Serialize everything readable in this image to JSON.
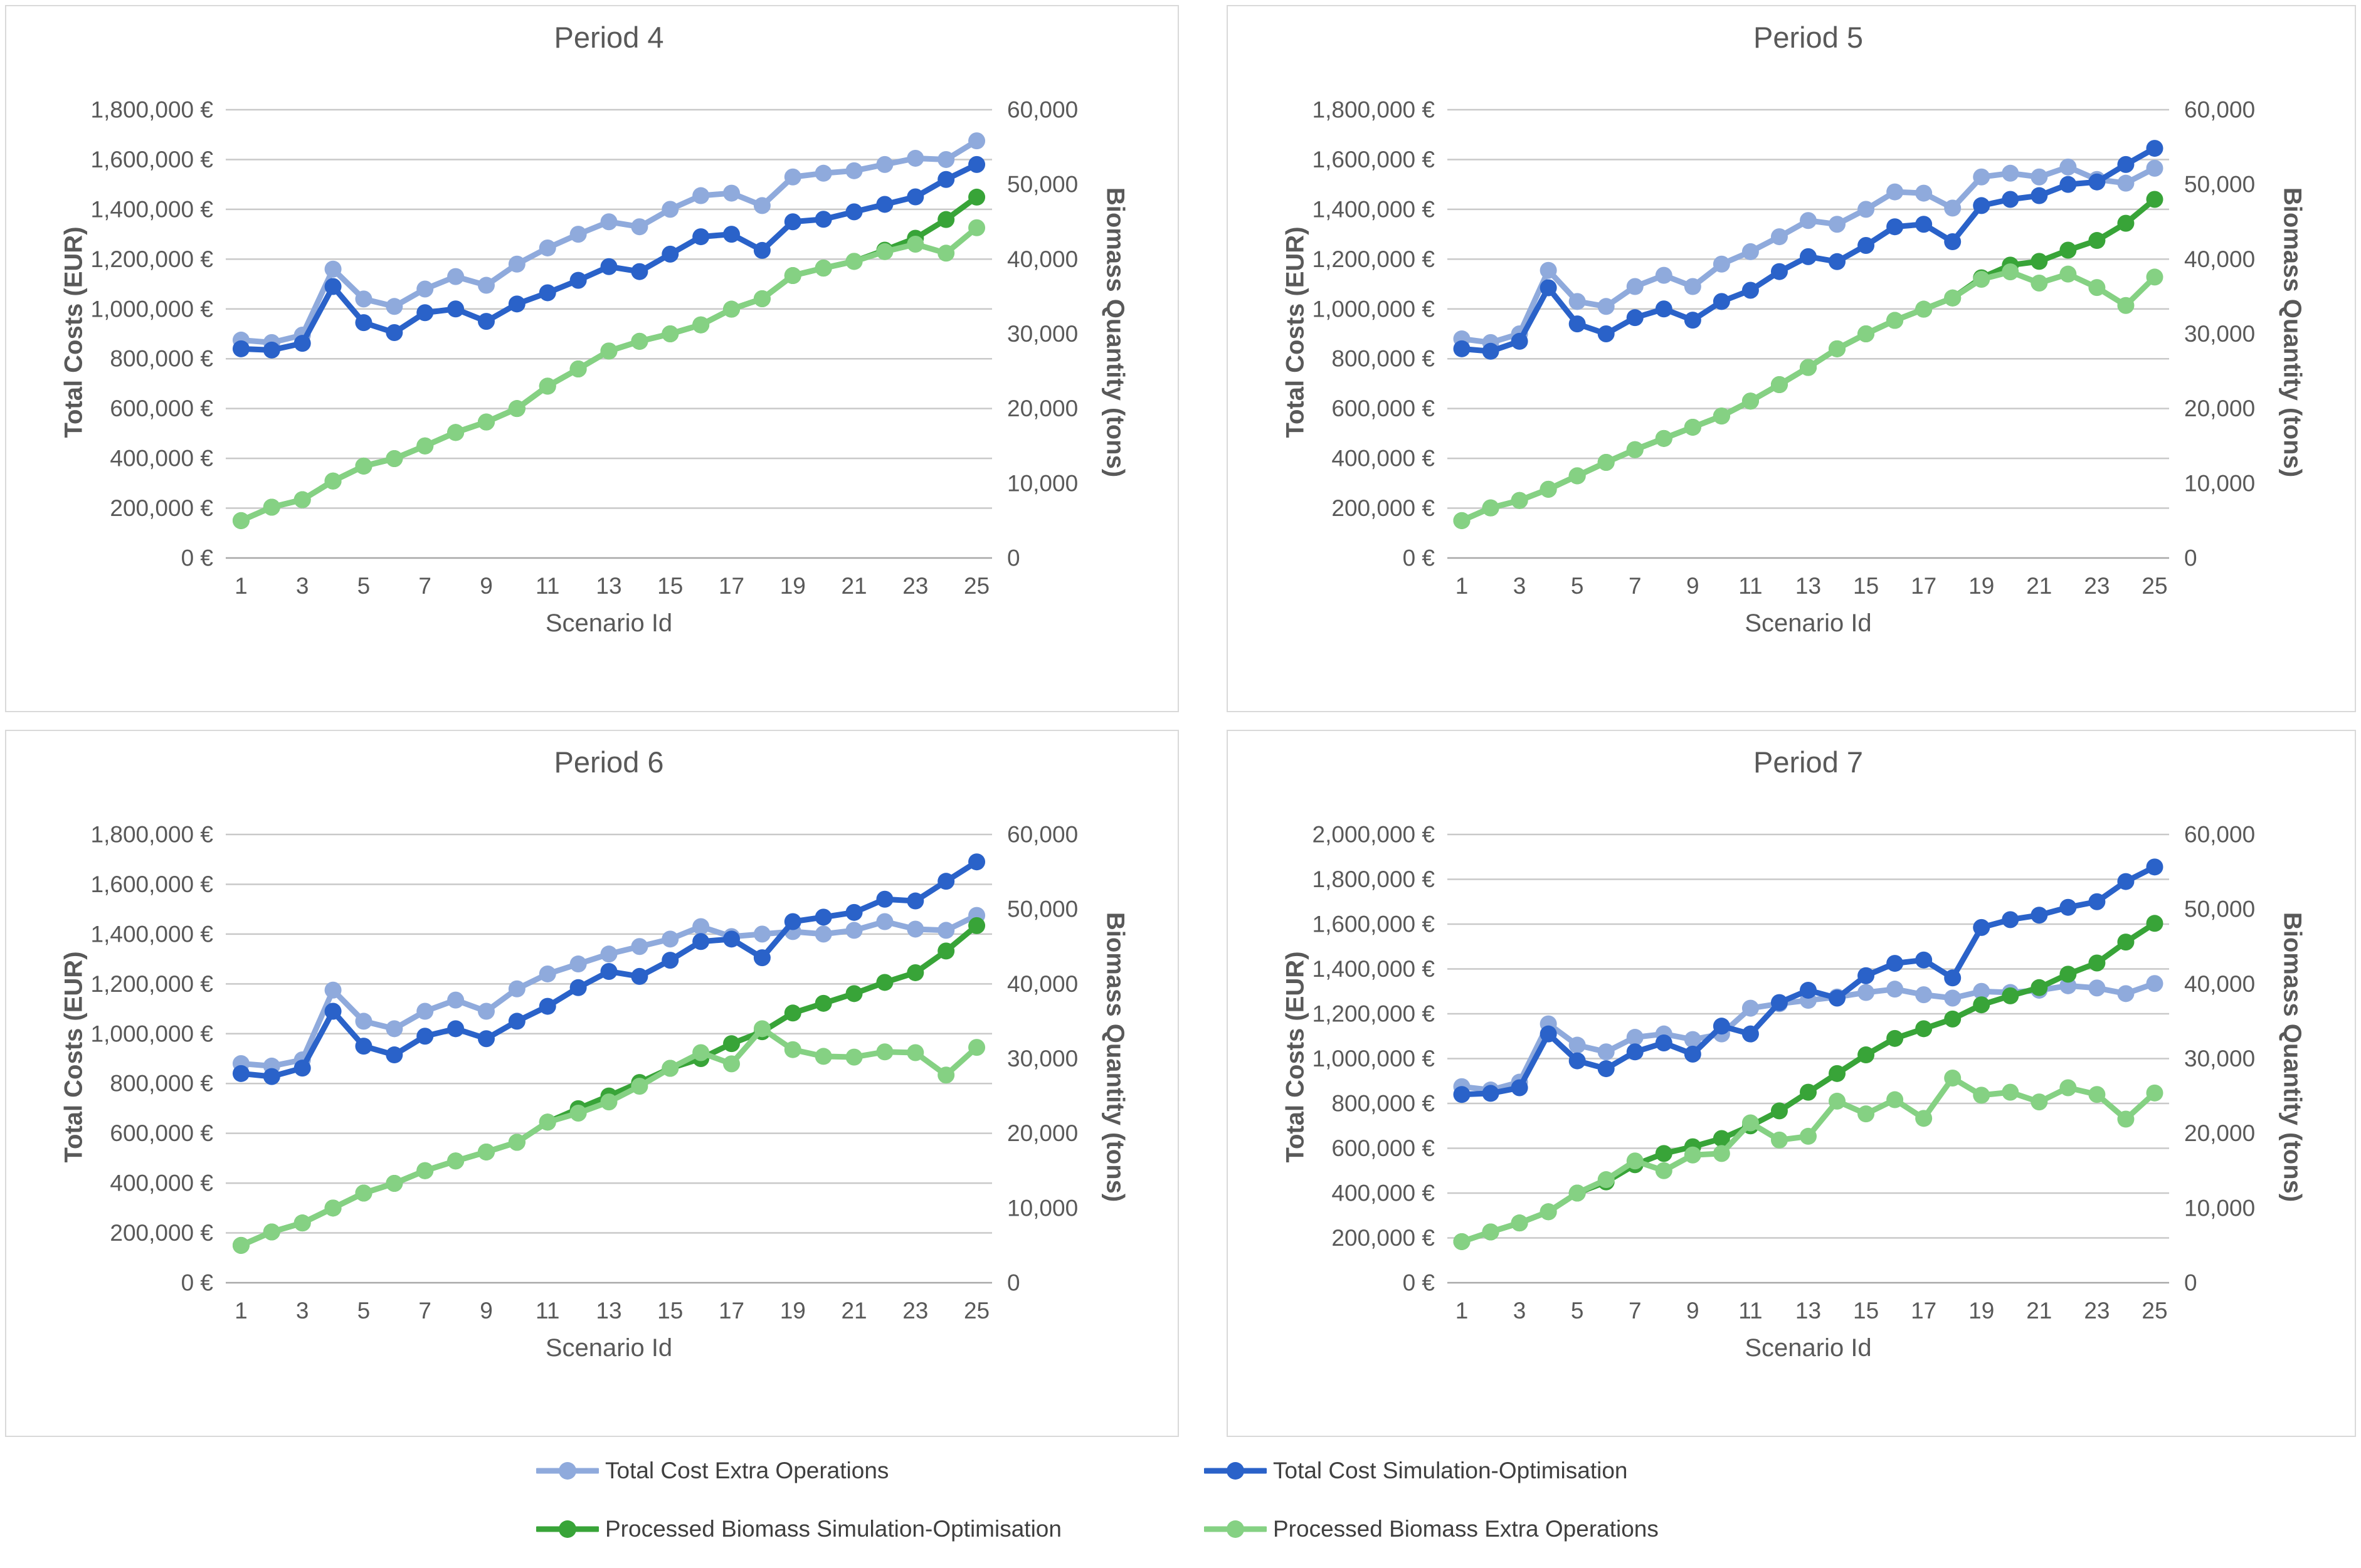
{
  "legend": {
    "items": [
      {
        "label": "Total Cost Extra Operations",
        "color": "#8FAADC"
      },
      {
        "label": "Total Cost Simulation-Optimisation",
        "color": "#2A62C9"
      },
      {
        "label": "Processed Biomass Simulation-Optimisation",
        "color": "#38A438"
      },
      {
        "label": "Processed Biomass Extra Operations",
        "color": "#85D183"
      }
    ]
  },
  "chart_data": [
    {
      "title": "Period 4",
      "type": "line",
      "xlabel": "Scenario Id",
      "ylabel_left": "Total Costs (EUR)",
      "ylabel_right": "Biomass Quantity (tons)",
      "x": [
        1,
        2,
        3,
        4,
        5,
        6,
        7,
        8,
        9,
        10,
        11,
        12,
        13,
        14,
        15,
        16,
        17,
        18,
        19,
        20,
        21,
        22,
        23,
        24,
        25
      ],
      "x_tick_labels": [
        "1",
        "3",
        "5",
        "7",
        "9",
        "11",
        "13",
        "15",
        "17",
        "19",
        "21",
        "23",
        "25"
      ],
      "left_axis": {
        "min": 0,
        "max": 1800000,
        "tick_labels": [
          "1,800,000 €",
          "1,600,000 €",
          "1,400,000 €",
          "1,200,000 €",
          "1,000,000 €",
          "800,000 €",
          "600,000 €",
          "400,000 €",
          "200,000 €",
          "0 €"
        ]
      },
      "right_axis": {
        "min": 0,
        "max": 60000,
        "tick_labels": [
          "60,000",
          "50,000",
          "40,000",
          "30,000",
          "20,000",
          "10,000",
          "0"
        ]
      },
      "grid": true,
      "legend_position": "bottom",
      "series": [
        {
          "name": "Total Cost Extra Operations",
          "axis": "left",
          "color": "#8FAADC",
          "values": [
            875000,
            865000,
            895000,
            1160000,
            1040000,
            1010000,
            1080000,
            1130000,
            1095000,
            1180000,
            1245000,
            1300000,
            1350000,
            1330000,
            1400000,
            1455000,
            1465000,
            1415000,
            1530000,
            1545000,
            1555000,
            1580000,
            1605000,
            1600000,
            1675000
          ]
        },
        {
          "name": "Total Cost Simulation-Optimisation",
          "axis": "left",
          "color": "#2A62C9",
          "values": [
            840000,
            835000,
            862000,
            1090000,
            945000,
            905000,
            985000,
            1000000,
            950000,
            1020000,
            1065000,
            1115000,
            1170000,
            1150000,
            1220000,
            1290000,
            1300000,
            1235000,
            1350000,
            1360000,
            1390000,
            1420000,
            1450000,
            1520000,
            1580000
          ]
        },
        {
          "name": "Processed Biomass Simulation-Optimisation",
          "axis": "right",
          "color": "#38A438",
          "values": [
            5000,
            6800,
            7800,
            10300,
            12300,
            13300,
            15000,
            16800,
            18200,
            20000,
            23000,
            25300,
            27700,
            29000,
            30000,
            31200,
            33300,
            34700,
            37800,
            38800,
            39700,
            41200,
            42800,
            45300,
            48300
          ]
        },
        {
          "name": "Processed Biomass Extra Operations",
          "axis": "right",
          "color": "#85D183",
          "values": [
            5000,
            6800,
            7800,
            10300,
            12300,
            13300,
            15000,
            16800,
            18200,
            20000,
            23000,
            25300,
            27700,
            29000,
            30000,
            31200,
            33300,
            34700,
            37800,
            38800,
            39700,
            41000,
            42000,
            40800,
            44200
          ]
        }
      ]
    },
    {
      "title": "Period 5",
      "type": "line",
      "xlabel": "Scenario Id",
      "ylabel_left": "Total Costs (EUR)",
      "ylabel_right": "Biomass Quantity (tons)",
      "x": [
        1,
        2,
        3,
        4,
        5,
        6,
        7,
        8,
        9,
        10,
        11,
        12,
        13,
        14,
        15,
        16,
        17,
        18,
        19,
        20,
        21,
        22,
        23,
        24,
        25
      ],
      "x_tick_labels": [
        "1",
        "3",
        "5",
        "7",
        "9",
        "11",
        "13",
        "15",
        "17",
        "19",
        "21",
        "23",
        "25"
      ],
      "left_axis": {
        "min": 0,
        "max": 1800000,
        "tick_labels": [
          "1,800,000 €",
          "1,600,000 €",
          "1,400,000 €",
          "1,200,000 €",
          "1,000,000 €",
          "800,000 €",
          "600,000 €",
          "400,000 €",
          "200,000 €",
          "0 €"
        ]
      },
      "right_axis": {
        "min": 0,
        "max": 60000,
        "tick_labels": [
          "60,000",
          "50,000",
          "40,000",
          "30,000",
          "20,000",
          "10,000",
          "0"
        ]
      },
      "grid": true,
      "legend_position": "bottom",
      "series": [
        {
          "name": "Total Cost Extra Operations",
          "axis": "left",
          "color": "#8FAADC",
          "values": [
            880000,
            865000,
            900000,
            1155000,
            1030000,
            1010000,
            1090000,
            1135000,
            1090000,
            1180000,
            1230000,
            1290000,
            1355000,
            1340000,
            1400000,
            1470000,
            1465000,
            1405000,
            1530000,
            1545000,
            1530000,
            1570000,
            1520000,
            1505000,
            1565000
          ]
        },
        {
          "name": "Total Cost Simulation-Optimisation",
          "axis": "left",
          "color": "#2A62C9",
          "values": [
            840000,
            830000,
            870000,
            1085000,
            940000,
            900000,
            965000,
            1000000,
            955000,
            1030000,
            1075000,
            1150000,
            1210000,
            1190000,
            1255000,
            1330000,
            1340000,
            1270000,
            1415000,
            1440000,
            1455000,
            1500000,
            1510000,
            1580000,
            1645000
          ]
        },
        {
          "name": "Processed Biomass Simulation-Optimisation",
          "axis": "right",
          "color": "#38A438",
          "values": [
            5000,
            6700,
            7700,
            9200,
            11000,
            12800,
            14500,
            16000,
            17500,
            19000,
            21000,
            23200,
            25500,
            28000,
            30000,
            31800,
            33300,
            34800,
            37500,
            39200,
            39700,
            41200,
            42500,
            44800,
            48000
          ]
        },
        {
          "name": "Processed Biomass Extra Operations",
          "axis": "right",
          "color": "#85D183",
          "values": [
            5000,
            6700,
            7700,
            9200,
            11000,
            12800,
            14500,
            16000,
            17500,
            19000,
            21000,
            23200,
            25500,
            28000,
            30000,
            31800,
            33300,
            34800,
            37300,
            38300,
            36800,
            38000,
            36200,
            33800,
            37600
          ]
        }
      ]
    },
    {
      "title": "Period 6",
      "type": "line",
      "xlabel": "Scenario Id",
      "ylabel_left": "Total Costs (EUR)",
      "ylabel_right": "Biomass Quantity (tons)",
      "x": [
        1,
        2,
        3,
        4,
        5,
        6,
        7,
        8,
        9,
        10,
        11,
        12,
        13,
        14,
        15,
        16,
        17,
        18,
        19,
        20,
        21,
        22,
        23,
        24,
        25
      ],
      "x_tick_labels": [
        "1",
        "3",
        "5",
        "7",
        "9",
        "11",
        "13",
        "15",
        "17",
        "19",
        "21",
        "23",
        "25"
      ],
      "left_axis": {
        "min": 0,
        "max": 1800000,
        "tick_labels": [
          "1,800,000 €",
          "1,600,000 €",
          "1,400,000 €",
          "1,200,000 €",
          "1,000,000 €",
          "800,000 €",
          "600,000 €",
          "400,000 €",
          "200,000 €",
          "0 €"
        ]
      },
      "right_axis": {
        "min": 0,
        "max": 60000,
        "tick_labels": [
          "60,000",
          "50,000",
          "40,000",
          "30,000",
          "20,000",
          "10,000",
          "0"
        ]
      },
      "grid": true,
      "legend_position": "bottom",
      "series": [
        {
          "name": "Total Cost Extra Operations",
          "axis": "left",
          "color": "#8FAADC",
          "values": [
            880000,
            870000,
            895000,
            1175000,
            1050000,
            1020000,
            1090000,
            1135000,
            1090000,
            1180000,
            1240000,
            1280000,
            1320000,
            1350000,
            1380000,
            1430000,
            1390000,
            1400000,
            1410000,
            1400000,
            1415000,
            1450000,
            1420000,
            1415000,
            1475000
          ]
        },
        {
          "name": "Total Cost Simulation-Optimisation",
          "axis": "left",
          "color": "#2A62C9",
          "values": [
            840000,
            828000,
            862000,
            1090000,
            950000,
            915000,
            990000,
            1020000,
            980000,
            1050000,
            1110000,
            1185000,
            1250000,
            1230000,
            1295000,
            1370000,
            1380000,
            1305000,
            1450000,
            1468000,
            1487000,
            1540000,
            1533000,
            1612000,
            1690000
          ]
        },
        {
          "name": "Processed Biomass Simulation-Optimisation",
          "axis": "right",
          "color": "#38A438",
          "values": [
            5000,
            6800,
            8000,
            10000,
            12000,
            13300,
            15000,
            16300,
            17500,
            18800,
            21500,
            23300,
            25000,
            26800,
            28700,
            30000,
            32000,
            33600,
            36100,
            37400,
            38700,
            40200,
            41500,
            44400,
            47800
          ]
        },
        {
          "name": "Processed Biomass Extra Operations",
          "axis": "right",
          "color": "#85D183",
          "values": [
            5000,
            6800,
            8000,
            10000,
            12000,
            13300,
            15000,
            16300,
            17500,
            18800,
            21500,
            22700,
            24200,
            26300,
            28700,
            30800,
            29300,
            34000,
            31200,
            30300,
            30200,
            30900,
            30800,
            27800,
            31500
          ]
        }
      ]
    },
    {
      "title": "Period 7",
      "type": "line",
      "xlabel": "Scenario Id",
      "ylabel_left": "Total Costs (EUR)",
      "ylabel_right": "Biomass Quantity (tons)",
      "x": [
        1,
        2,
        3,
        4,
        5,
        6,
        7,
        8,
        9,
        10,
        11,
        12,
        13,
        14,
        15,
        16,
        17,
        18,
        19,
        20,
        21,
        22,
        23,
        24,
        25
      ],
      "x_tick_labels": [
        "1",
        "3",
        "5",
        "7",
        "9",
        "11",
        "13",
        "15",
        "17",
        "19",
        "21",
        "23",
        "25"
      ],
      "left_axis": {
        "min": 0,
        "max": 2000000,
        "tick_labels": [
          "2,000,000 €",
          "1,800,000 €",
          "1,600,000 €",
          "1,400,000 €",
          "1,200,000 €",
          "1,000,000 €",
          "800,000 €",
          "600,000 €",
          "400,000 €",
          "200,000 €",
          "0 €"
        ]
      },
      "right_axis": {
        "min": 0,
        "max": 60000,
        "tick_labels": [
          "60,000",
          "50,000",
          "40,000",
          "30,000",
          "20,000",
          "10,000",
          "0"
        ]
      },
      "grid": true,
      "legend_position": "bottom",
      "series": [
        {
          "name": "Total Cost Extra Operations",
          "axis": "left",
          "color": "#8FAADC",
          "values": [
            875000,
            860000,
            895000,
            1155000,
            1060000,
            1030000,
            1095000,
            1110000,
            1085000,
            1110000,
            1225000,
            1245000,
            1260000,
            1275000,
            1295000,
            1310000,
            1285000,
            1270000,
            1300000,
            1295000,
            1305000,
            1325000,
            1315000,
            1290000,
            1335000
          ]
        },
        {
          "name": "Total Cost Simulation-Optimisation",
          "axis": "left",
          "color": "#2A62C9",
          "values": [
            840000,
            845000,
            870000,
            1110000,
            990000,
            955000,
            1030000,
            1070000,
            1020000,
            1145000,
            1110000,
            1250000,
            1305000,
            1270000,
            1370000,
            1425000,
            1440000,
            1360000,
            1585000,
            1620000,
            1640000,
            1675000,
            1700000,
            1790000,
            1855000
          ]
        },
        {
          "name": "Processed Biomass Simulation-Optimisation",
          "axis": "right",
          "color": "#38A438",
          "values": [
            5500,
            6800,
            8000,
            9500,
            12000,
            13500,
            15800,
            17300,
            18200,
            19300,
            21000,
            23000,
            25500,
            28000,
            30500,
            32700,
            34000,
            35300,
            37200,
            38400,
            39500,
            41300,
            42800,
            45600,
            48100
          ]
        },
        {
          "name": "Processed Biomass Extra Operations",
          "axis": "right",
          "color": "#85D183",
          "values": [
            5500,
            6800,
            8000,
            9500,
            12000,
            13800,
            16300,
            15000,
            17100,
            17300,
            21400,
            19100,
            19600,
            24300,
            22600,
            24500,
            22000,
            27400,
            25100,
            25500,
            24200,
            26100,
            25200,
            21900,
            25400
          ]
        }
      ]
    }
  ]
}
